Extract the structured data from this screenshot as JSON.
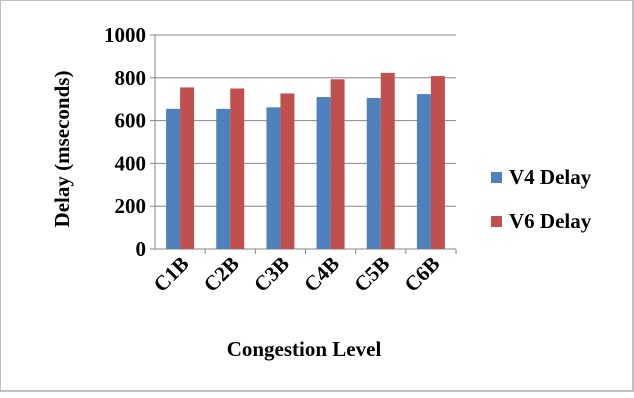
{
  "chart_data": {
    "type": "bar",
    "title": "",
    "xlabel": "Congestion Level",
    "ylabel": "Delay (mseconds)",
    "categories": [
      "C1B",
      "C2B",
      "C3B",
      "C4B",
      "C5B",
      "C6B"
    ],
    "series": [
      {
        "name": "V4 Delay",
        "color": "#4f81bd",
        "values": [
          655,
          655,
          662,
          710,
          706,
          724
        ]
      },
      {
        "name": "V6 Delay",
        "color": "#c0504d",
        "values": [
          755,
          750,
          727,
          793,
          823,
          808
        ]
      }
    ],
    "ylim": [
      0,
      1000
    ],
    "yticks": [
      "0",
      "200",
      "400",
      "600",
      "800",
      "1000"
    ],
    "grid": true,
    "legend_position": "right"
  }
}
